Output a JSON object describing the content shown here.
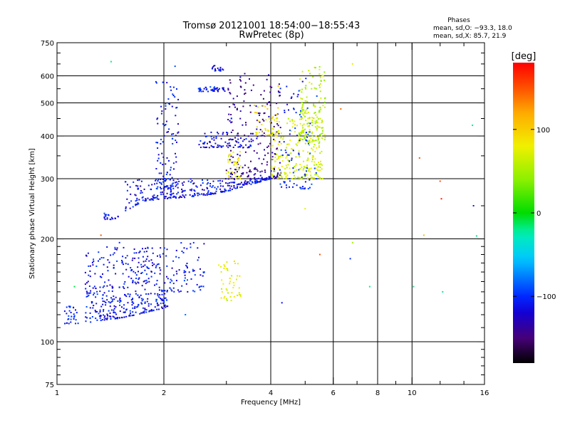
{
  "chart_data": {
    "type": "scatter",
    "title": "Tromsø 20121001 18:54:00−18:55:43",
    "subtitle": "RwPretec (8p)",
    "xlabel": "Frequency [MHz]",
    "ylabel": "Stationary phase Virtual Height [km]",
    "x_scale": "log",
    "y_scale": "log",
    "xlim": [
      1,
      16
    ],
    "ylim": [
      75,
      750
    ],
    "x_ticks": [
      1,
      2,
      4,
      6,
      8,
      10,
      16
    ],
    "x_tick_labels": [
      "1",
      "2",
      "4",
      "6",
      "8",
      "10",
      "16"
    ],
    "y_ticks": [
      75,
      100,
      200,
      300,
      400,
      500,
      600,
      750
    ],
    "y_tick_labels": [
      "75",
      "100",
      "200",
      "300",
      "400",
      "500",
      "600",
      "750"
    ],
    "x_minor_ticks": [
      3,
      5,
      7,
      9,
      12,
      14
    ],
    "y_minor_ticks": [
      80,
      85,
      90,
      95,
      110,
      120,
      130,
      140,
      150,
      160,
      170,
      180,
      190,
      250,
      350,
      450,
      550,
      650,
      700
    ],
    "grid": true,
    "stats": {
      "heading": "Phases",
      "line_o": "mean, sd,O: −93.3, 18.0",
      "line_x": "mean, sd,X:  85.7, 21.9"
    },
    "colorbar": {
      "label": "[deg]",
      "range": [
        -180,
        180
      ],
      "ticks": [
        100,
        0,
        -100
      ],
      "tick_labels": [
        "100",
        "0",
        "−100"
      ]
    },
    "clusters": [
      {
        "name": "E low",
        "fmin": 1.05,
        "fmax": 1.15,
        "hmin": 113,
        "hmax": 128,
        "n": 30,
        "phase": -108
      },
      {
        "name": "E layer",
        "fmin": 1.2,
        "fmax": 2.05,
        "hmin": 113,
        "hmax": 190,
        "n": 420,
        "phase": -110,
        "shape": "lowedge",
        "edge": [
          [
            1.2,
            113
          ],
          [
            1.5,
            117
          ],
          [
            2.05,
            126
          ]
        ]
      },
      {
        "name": "E upper",
        "fmin": 2.05,
        "fmax": 2.6,
        "hmin": 140,
        "hmax": 195,
        "n": 70,
        "phase": -108
      },
      {
        "name": "sporadic green",
        "fmin": 2.85,
        "fmax": 3.3,
        "hmin": 132,
        "hmax": 172,
        "n": 45,
        "phase": 75
      },
      {
        "name": "F low shelf",
        "fmin": 1.35,
        "fmax": 1.5,
        "hmin": 228,
        "hmax": 238,
        "n": 20,
        "phase": -110
      },
      {
        "name": "F1 trace",
        "fmin": 1.55,
        "fmax": 4.1,
        "hmin": 240,
        "hmax": 300,
        "n": 320,
        "phase": -112,
        "shape": "lowedge",
        "edge": [
          [
            1.55,
            240
          ],
          [
            1.75,
            258
          ],
          [
            2.0,
            262
          ],
          [
            2.5,
            266
          ],
          [
            3.0,
            275
          ],
          [
            3.5,
            288
          ],
          [
            4.0,
            300
          ]
        ]
      },
      {
        "name": "F2 o-trace",
        "fmin": 3.0,
        "fmax": 4.3,
        "hmin": 300,
        "hmax": 610,
        "n": 210,
        "phase": -140
      },
      {
        "name": "F2 mixed",
        "fmin": 3.0,
        "fmax": 3.3,
        "hmin": 300,
        "hmax": 360,
        "n": 40,
        "phase": 80
      },
      {
        "name": "F2 x-trace",
        "fmin": 4.0,
        "fmax": 5.6,
        "hmin": 300,
        "hmax": 460,
        "n": 220,
        "phase": 70
      },
      {
        "name": "F2 x upper",
        "fmin": 4.8,
        "fmax": 5.7,
        "hmin": 380,
        "hmax": 640,
        "n": 160,
        "phase": 55
      },
      {
        "name": "F2 blue upper",
        "fmin": 4.2,
        "fmax": 5.4,
        "hmin": 280,
        "hmax": 600,
        "n": 90,
        "phase": -105
      },
      {
        "name": "Spread 400",
        "fmin": 2.5,
        "fmax": 3.6,
        "hmin": 370,
        "hmax": 410,
        "n": 80,
        "phase": -115
      },
      {
        "name": "Patch 550",
        "fmin": 2.5,
        "fmax": 3.0,
        "hmin": 540,
        "hmax": 560,
        "n": 40,
        "phase": -110
      },
      {
        "name": "Patch 640",
        "fmin": 2.7,
        "fmax": 2.95,
        "hmin": 620,
        "hmax": 645,
        "n": 20,
        "phase": -115
      },
      {
        "name": "Column 2.1",
        "fmin": 1.9,
        "fmax": 2.2,
        "hmin": 280,
        "hmax": 580,
        "n": 110,
        "phase": -110
      },
      {
        "name": "Green 420",
        "fmin": 3.6,
        "fmax": 4.2,
        "hmin": 400,
        "hmax": 500,
        "n": 45,
        "phase": 85
      }
    ],
    "stray_points": [
      [
        1.42,
        660,
        -20
      ],
      [
        1.12,
        145,
        -10
      ],
      [
        2.15,
        640,
        -90
      ],
      [
        4.3,
        130,
        -110
      ],
      [
        6.8,
        650,
        85
      ],
      [
        6.3,
        480,
        140
      ],
      [
        6.8,
        195,
        50
      ],
      [
        6.7,
        175,
        -100
      ],
      [
        5.5,
        180,
        150
      ],
      [
        5.0,
        245,
        75
      ],
      [
        7.6,
        145,
        -20
      ],
      [
        10.1,
        145,
        -20
      ],
      [
        10.5,
        345,
        150
      ],
      [
        10.8,
        205,
        110
      ],
      [
        12.0,
        295,
        150
      ],
      [
        12.1,
        262,
        170
      ],
      [
        12.2,
        140,
        -20
      ],
      [
        14.8,
        430,
        -20
      ],
      [
        14.9,
        250,
        -110
      ],
      [
        15.2,
        204,
        -20
      ],
      [
        1.33,
        205,
        150
      ],
      [
        1.5,
        195,
        -100
      ],
      [
        3.1,
        450,
        -100
      ],
      [
        2.3,
        120,
        -80
      ],
      [
        4.2,
        560,
        100
      ]
    ]
  }
}
